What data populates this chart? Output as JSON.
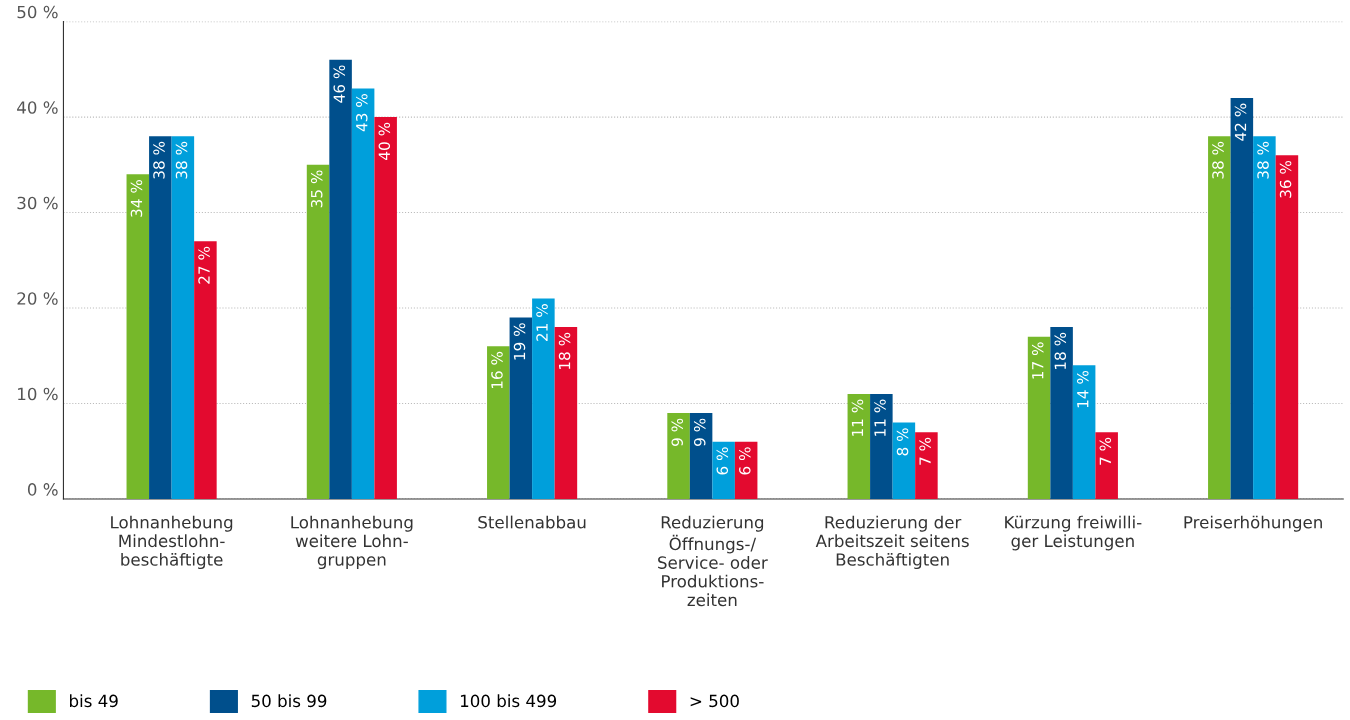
{
  "chart_data": {
    "type": "bar",
    "categories": [
      "Lohnanhebung\nMindestlohn-\nbeschäftigte",
      "Lohnanhebung\nweitere Lohn-\ngruppen",
      "Stellenabbau",
      "Reduzierung\nÖffnungs-/\nService- oder\nProduktions-\nzeiten",
      "Reduzierung der\nArbeitszeit seitens\nBeschäftigten",
      "Kürzung freiwilli-\nger Leistungen",
      "Preiserhöhungen"
    ],
    "series": [
      {
        "name": "bis 49",
        "color": "#76b82a",
        "values": [
          34,
          35,
          16,
          9,
          11,
          17,
          38
        ],
        "value_labels": [
          "34 %",
          "35 %",
          "16 %",
          "9 %",
          "11 %",
          "17 %",
          "38 %"
        ]
      },
      {
        "name": "50 bis 99",
        "color": "#004f8c",
        "values": [
          38,
          46,
          19,
          9,
          11,
          18,
          42
        ],
        "value_labels": [
          "38 %",
          "46 %",
          "19 %",
          "9 %",
          "11 %",
          "18 %",
          "42 %"
        ]
      },
      {
        "name": "100 bis 499",
        "color": "#009fdb",
        "values": [
          38,
          43,
          21,
          6,
          8,
          14,
          38
        ],
        "value_labels": [
          "38 %",
          "43 %",
          "21 %",
          "6 %",
          "8 %",
          "14 %",
          "38 %"
        ]
      },
      {
        "name": "> 500",
        "color": "#e30a2f",
        "values": [
          27,
          40,
          18,
          6,
          7,
          7,
          36
        ],
        "value_labels": [
          "27 %",
          "40 %",
          "18 %",
          "6 %",
          "7 %",
          "7 %",
          "36 %"
        ]
      }
    ],
    "ylim": [
      0,
      50
    ],
    "yticks": [
      {
        "value": 0,
        "label": "0 %"
      },
      {
        "value": 10,
        "label": "10 %"
      },
      {
        "value": 20,
        "label": "20 %"
      },
      {
        "value": 30,
        "label": "30 %"
      },
      {
        "value": 40,
        "label": "40 %"
      },
      {
        "value": 50,
        "label": "50 %"
      }
    ],
    "grid": "y",
    "legend": "bottom left"
  }
}
